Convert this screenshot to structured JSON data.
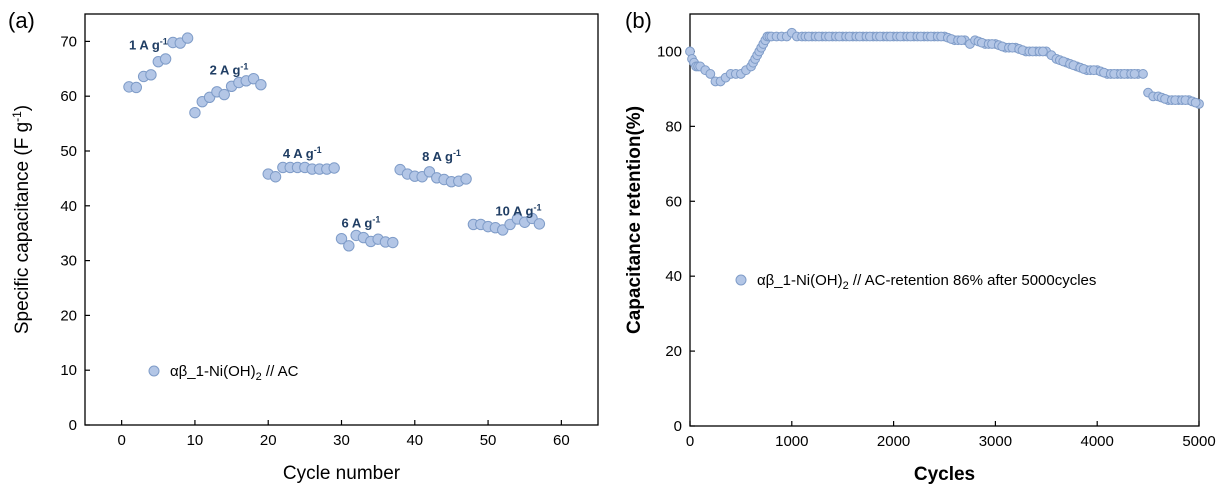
{
  "colors": {
    "marker_fill": "#b3c6e6",
    "marker_stroke": "#7f9cc8",
    "rate_label": "#1f3d63"
  },
  "chart_data": [
    {
      "panel_label": "(a)",
      "type": "scatter",
      "xlabel": "Cycle number",
      "ylabel": "Specific capacitance (F g",
      "ylabel_sup": "-1",
      "ylabel_end": ")",
      "xlim": [
        -5,
        65
      ],
      "ylim": [
        0,
        75
      ],
      "xticks": [
        0,
        10,
        20,
        30,
        40,
        50,
        60
      ],
      "yticks": [
        0,
        10,
        20,
        30,
        40,
        50,
        60,
        70
      ],
      "legend": {
        "text": "αβ_1-Ni(OH)",
        "sub": "2",
        "suffix": " // AC",
        "placement": "lower-left"
      },
      "annotations": [
        {
          "text": "1 A g",
          "sup": "-1",
          "x": 1,
          "y": 68.5
        },
        {
          "text": "2 A g",
          "sup": "-1",
          "x": 12,
          "y": 64
        },
        {
          "text": "4 A g",
          "sup": "-1",
          "x": 22,
          "y": 48.7
        },
        {
          "text": "6 A g",
          "sup": "-1",
          "x": 30,
          "y": 36
        },
        {
          "text": "8 A g",
          "sup": "-1",
          "x": 41,
          "y": 48.2
        },
        {
          "text": "10 A g",
          "sup": "-1",
          "x": 51,
          "y": 38.2
        }
      ],
      "series": [
        {
          "x": [
            1,
            2,
            3,
            4,
            5,
            6,
            7,
            8,
            9,
            10,
            11,
            12,
            13,
            14,
            15,
            16,
            17,
            18,
            19,
            20,
            21,
            22,
            23,
            24,
            25,
            26,
            27,
            28,
            29,
            30,
            31,
            32,
            33,
            34,
            35,
            36,
            37,
            38,
            39,
            40,
            41,
            42,
            43,
            44,
            45,
            46,
            47,
            48,
            49,
            50,
            51,
            52,
            53,
            54,
            55,
            56,
            57
          ],
          "y": [
            61.7,
            61.6,
            63.6,
            63.9,
            66.3,
            66.8,
            69.8,
            69.7,
            70.6,
            57.0,
            59.0,
            59.8,
            60.8,
            60.3,
            61.8,
            62.5,
            62.8,
            63.2,
            62.1,
            45.8,
            45.3,
            47.0,
            47.0,
            47.0,
            47.0,
            46.7,
            46.7,
            46.7,
            46.9,
            34.0,
            32.7,
            34.6,
            34.2,
            33.5,
            33.9,
            33.4,
            33.3,
            46.6,
            45.8,
            45.4,
            45.3,
            46.2,
            45.1,
            44.8,
            44.4,
            44.5,
            44.9,
            36.6,
            36.6,
            36.2,
            36.0,
            35.6,
            36.6,
            37.6,
            37.0,
            37.7,
            36.7
          ]
        }
      ]
    },
    {
      "panel_label": "(b)",
      "type": "scatter",
      "xlabel": "Cycles",
      "ylabel": "Capacitance retention(%)",
      "xlim": [
        0,
        5000
      ],
      "ylim": [
        0,
        110
      ],
      "xticks": [
        0,
        1000,
        2000,
        3000,
        4000,
        5000
      ],
      "yticks": [
        0,
        20,
        40,
        60,
        80,
        100
      ],
      "legend": {
        "text": "αβ_1-Ni(OH)",
        "sub": "2",
        "suffix": " // AC-retention 86% after 5000cycles",
        "placement": "center"
      },
      "series": [
        {
          "x": [
            0,
            20,
            40,
            60,
            80,
            100,
            150,
            200,
            250,
            300,
            350,
            400,
            450,
            500,
            550,
            600,
            620,
            640,
            660,
            680,
            700,
            720,
            740,
            760,
            780,
            800,
            850,
            900,
            950,
            1000,
            1050,
            1100,
            1200,
            1300,
            1400,
            1500,
            1600,
            1700,
            1800,
            1900,
            2000,
            2100,
            2200,
            2300,
            2400,
            2500,
            2600,
            2700,
            2750,
            2800,
            2900,
            3000,
            3100,
            3200,
            3300,
            3400,
            3500,
            3550,
            3600,
            3700,
            3800,
            3900,
            4000,
            4100,
            4200,
            4300,
            4400,
            4450,
            4500,
            4550,
            4600,
            4700,
            4800,
            4900,
            5000
          ],
          "y": [
            100,
            98,
            97,
            96,
            96,
            96,
            95,
            94,
            92,
            92,
            93,
            94,
            94,
            94,
            95,
            96,
            97,
            98,
            99,
            100,
            101,
            102,
            103,
            104,
            104,
            104,
            104,
            104,
            104,
            105,
            104,
            104,
            104,
            104,
            104,
            104,
            104,
            104,
            104,
            104,
            104,
            104,
            104,
            104,
            104,
            104,
            103,
            103,
            102,
            103,
            102,
            102,
            101,
            101,
            100,
            100,
            100,
            99,
            98,
            97,
            96,
            95,
            95,
            94,
            94,
            94,
            94,
            94,
            89,
            88,
            88,
            87,
            87,
            87,
            86
          ]
        }
      ]
    }
  ]
}
